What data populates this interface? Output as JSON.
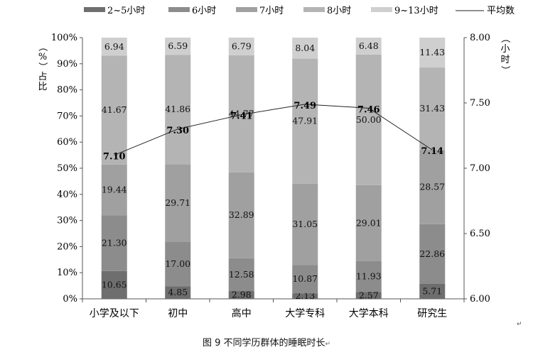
{
  "chart_data": {
    "type": "bar",
    "stacked": true,
    "percent_stacked": true,
    "categories": [
      "小学及以下",
      "初中",
      "高中",
      "大学专科",
      "大学本科",
      "研究生"
    ],
    "series": [
      {
        "name": "2~5小时",
        "color": "#6e6e6e",
        "values": [
          10.65,
          4.85,
          2.98,
          2.13,
          2.57,
          5.71
        ]
      },
      {
        "name": "6小时",
        "color": "#8c8c8c",
        "values": [
          21.3,
          17.0,
          12.58,
          10.87,
          11.93,
          22.86
        ]
      },
      {
        "name": "7小时",
        "color": "#a0a0a0",
        "values": [
          19.44,
          29.71,
          32.89,
          31.05,
          29.01,
          28.57
        ]
      },
      {
        "name": "8小时",
        "color": "#b4b4b4",
        "values": [
          41.67,
          41.86,
          44.77,
          47.91,
          50.0,
          31.43
        ]
      },
      {
        "name": "9~13小时",
        "color": "#cfcfcf",
        "values": [
          6.94,
          6.59,
          6.79,
          8.04,
          6.48,
          11.43
        ]
      }
    ],
    "line": {
      "name": "平均数",
      "color": "#222222",
      "values": [
        7.1,
        7.3,
        7.41,
        7.49,
        7.46,
        7.14
      ]
    },
    "y_left": {
      "label": "（%）占比",
      "ylim": [
        0,
        100
      ],
      "ticks": [
        "0%",
        "10%",
        "20%",
        "30%",
        "40%",
        "50%",
        "60%",
        "70%",
        "80%",
        "90%",
        "100%"
      ]
    },
    "y_right": {
      "label": "（小时）",
      "ylim": [
        6.0,
        8.0
      ],
      "ticks": [
        "6.00",
        "6.50",
        "7.00",
        "7.50",
        "8.00"
      ]
    },
    "legend_position": "top",
    "grid": false
  },
  "caption": "图 9  不同学历群体的睡眠时长",
  "return_mark": "↵"
}
